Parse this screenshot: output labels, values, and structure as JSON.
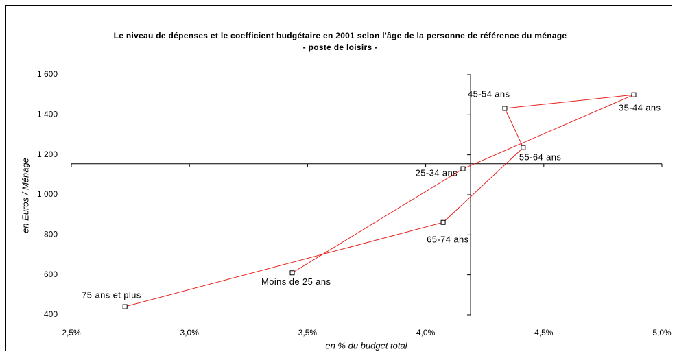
{
  "chart_data": {
    "type": "scatter",
    "title": "Le niveau de dépenses et le coefficient budgétaire en 2001 selon l'âge de la personne de référence du ménage",
    "subtitle": "- poste de loisirs -",
    "x_label": "en % du budget total",
    "y_label": "en Euros / Ménage",
    "labels": [
      "Moins de 25 ans",
      "25-34 ans",
      "35-44 ans",
      "45-54 ans",
      "55-64 ans",
      "65-74 ans",
      "75 ans et plus"
    ],
    "x": [
      3.435,
      4.158,
      4.881,
      4.335,
      4.413,
      4.074,
      2.727
    ],
    "values": [
      610,
      1130,
      1500,
      1432,
      1236,
      862,
      441
    ],
    "color": "#e8201c",
    "xlim": [
      2.5,
      5.0
    ],
    "xticks": [
      {
        "value": 2.5,
        "label": "2,5%"
      },
      {
        "value": 3.0,
        "label": "3,0%"
      },
      {
        "value": 3.5,
        "label": "3,5%"
      },
      {
        "value": 4.0,
        "label": "4,0%"
      },
      {
        "value": 4.5,
        "label": "4,5%"
      },
      {
        "value": 5.0,
        "label": "5,0%"
      }
    ],
    "ylim": [
      400,
      1600
    ],
    "yticks": [
      400,
      600,
      800,
      {
        "value": 1000,
        "label": "1 000"
      },
      {
        "value": 1200,
        "label": "1 200"
      },
      {
        "value": 1400,
        "label": "1 400"
      },
      {
        "value": 1600,
        "label": "1 600"
      }
    ],
    "y_axis_at_x": 4.19,
    "x_axis_at_y": 1155
  }
}
